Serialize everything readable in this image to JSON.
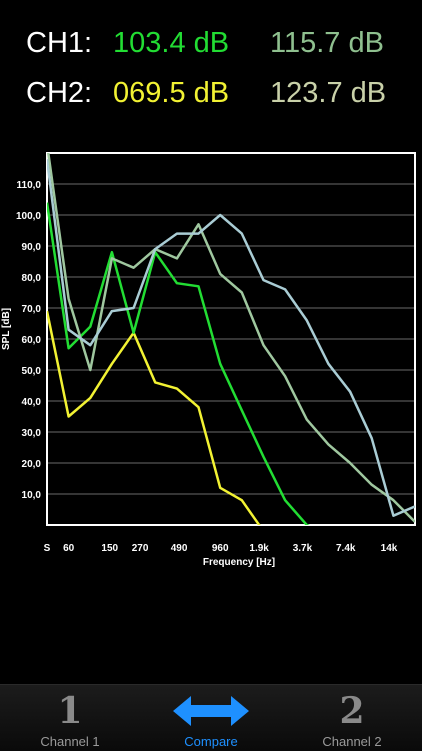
{
  "readouts": {
    "ch1": {
      "label": "CH1:",
      "value": "103.4 dB",
      "value_color": "#22dd33",
      "peak": "115.7 dB",
      "peak_color": "#8fc08f"
    },
    "ch2": {
      "label": "CH2:",
      "value": "069.5 dB",
      "value_color": "#f2f233",
      "peak": "123.7 dB",
      "peak_color": "#c9d1a9"
    }
  },
  "chart_data": {
    "type": "line",
    "xlabel": "Frequency [Hz]",
    "ylabel": "SPL [dB]",
    "ylim": [
      0,
      120
    ],
    "y_ticks": [
      "110,0",
      "100,0",
      "90,0",
      "80,0",
      "70,0",
      "60,0",
      "50,0",
      "40,0",
      "30,0",
      "20,0",
      "10,0"
    ],
    "y_tick_values": [
      110,
      100,
      90,
      80,
      70,
      60,
      50,
      40,
      30,
      20,
      10
    ],
    "x_ticks": [
      "S",
      "60",
      "150",
      "270",
      "490",
      "960",
      "1.9k",
      "3.7k",
      "7.4k",
      "14k"
    ],
    "x_tick_positions": [
      0,
      1,
      2.9,
      4.3,
      6.1,
      8,
      9.8,
      11.8,
      13.8,
      15.8
    ],
    "grid": true,
    "series": [
      {
        "color": "#f2f233",
        "x": [
          0,
          1,
          2,
          3,
          4,
          5,
          6,
          7,
          8,
          9,
          10,
          11,
          12,
          13,
          14,
          15,
          16,
          17
        ],
        "y": [
          69,
          35,
          41,
          52,
          62,
          46,
          44,
          38,
          12,
          8,
          -2,
          -5,
          -6,
          -6,
          -6,
          -6,
          -6,
          -6
        ]
      },
      {
        "color": "#22dd33",
        "x": [
          0,
          1,
          2,
          3,
          4,
          5,
          6,
          7,
          8,
          9,
          10,
          11,
          12,
          13,
          14,
          15,
          16,
          17
        ],
        "y": [
          104,
          57,
          64,
          88,
          62,
          88,
          78,
          77,
          52,
          37,
          22,
          8,
          0,
          -3,
          -4,
          -4,
          -4,
          -4
        ]
      },
      {
        "color": "#9fc79f",
        "x": [
          0,
          1,
          2,
          3,
          4,
          5,
          6,
          7,
          8,
          9,
          10,
          11,
          12,
          13,
          14,
          15,
          16,
          17
        ],
        "y": [
          123,
          73,
          50,
          86,
          83,
          89,
          86,
          97,
          81,
          75,
          58,
          48,
          34,
          26,
          20,
          13,
          8,
          1
        ]
      },
      {
        "color": "#a9ccd4",
        "x": [
          0,
          1,
          2,
          3,
          4,
          5,
          6,
          7,
          8,
          9,
          10,
          11,
          12,
          13,
          14,
          15,
          16,
          17
        ],
        "y": [
          118,
          63,
          58,
          69,
          70,
          89,
          94,
          94,
          100,
          94,
          79,
          76,
          66,
          52,
          43,
          28,
          3,
          6
        ]
      }
    ]
  },
  "tabbar": {
    "tabs": [
      {
        "label": "Channel 1",
        "glyph": "1",
        "icon": "digit-one-icon"
      },
      {
        "label": "Compare",
        "icon": "double-arrow-icon",
        "active": true,
        "color": "#1e90ff"
      },
      {
        "label": "Channel 2",
        "glyph": "2",
        "icon": "digit-two-icon"
      }
    ]
  }
}
